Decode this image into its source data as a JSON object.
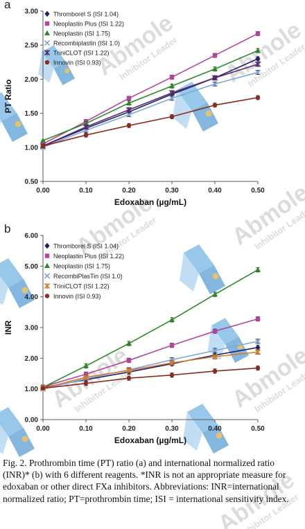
{
  "figure": {
    "caption": "Fig. 2. Prothrombin time (PT) ratio (a) and international normalized ratio (INR)* (b) with 6 different reagents. *INR is not an appropriate measure for edoxaban or other direct FXa inhibitors. Abbreviations: INR=international normalized ratio; PT=prothrombin time; ISI = international sensitivity index.",
    "watermark": {
      "brand": "Abmole",
      "tagline": "Inhibitor Leader"
    }
  },
  "chart_data": [
    {
      "type": "line",
      "panel_label": "a",
      "xlabel": "Edoxaban (µg/mL)",
      "ylabel": "PT Ratio",
      "xlim": [
        0,
        0.5
      ],
      "ylim": [
        0.5,
        3.0
      ],
      "x_ticks": [
        "0.00",
        "0.10",
        "0.20",
        "0.30",
        "0.40",
        "0.50"
      ],
      "y_ticks": [
        "0.50",
        "1.00",
        "1.50",
        "2.00",
        "2.50",
        "3.00"
      ],
      "x": [
        0,
        0.1,
        0.2,
        0.3,
        0.4,
        0.5
      ],
      "legend_position": "top-left",
      "series": [
        {
          "name": "Thromborel S (ISI 1.04)",
          "color": "#1f1f6e",
          "marker": "diamond",
          "values": [
            1.02,
            1.28,
            1.52,
            1.78,
            2.02,
            2.3
          ]
        },
        {
          "name": "Neoplastin Plus (ISI 1.22)",
          "color": "#b3469a",
          "marker": "square",
          "values": [
            1.05,
            1.38,
            1.72,
            2.03,
            2.35,
            2.67
          ]
        },
        {
          "name": "Neoplastin (ISI 1.75)",
          "color": "#2a8a2a",
          "marker": "triangle",
          "values": [
            1.1,
            1.35,
            1.65,
            1.9,
            2.15,
            2.42
          ]
        },
        {
          "name": "Recombiplastin (ISI 1.0)",
          "color": "#7fa7d8",
          "marker": "x",
          "values": [
            1.0,
            1.25,
            1.48,
            1.72,
            1.93,
            2.1
          ]
        },
        {
          "name": "TriniCLOT (ISI 1.22)",
          "color": "#5b2a6e",
          "marker": "star",
          "values": [
            1.02,
            1.3,
            1.55,
            1.8,
            2.02,
            2.22
          ]
        },
        {
          "name": "Innovin (ISI 0.93)",
          "color": "#8b2a1e",
          "marker": "circle",
          "values": [
            1.02,
            1.18,
            1.32,
            1.45,
            1.62,
            1.73
          ]
        }
      ]
    },
    {
      "type": "line",
      "panel_label": "b",
      "xlabel": "Edoxaban (µg/mL)",
      "ylabel": "INR",
      "xlim": [
        0,
        0.5
      ],
      "ylim": [
        0,
        6.0
      ],
      "x_ticks": [
        "0.00",
        "0.10",
        "0.20",
        "0.30",
        "0.40",
        "0.50"
      ],
      "y_ticks": [
        "0.00",
        "1.00",
        "2.00",
        "3.00",
        "4.00",
        "5.00",
        "6.00"
      ],
      "x": [
        0,
        0.1,
        0.2,
        0.3,
        0.4,
        0.5
      ],
      "legend_position": "top-left",
      "series": [
        {
          "name": "Thromborel S (ISI 1.04)",
          "color": "#1f1f6e",
          "marker": "diamond",
          "values": [
            1.05,
            1.3,
            1.55,
            1.82,
            2.1,
            2.35
          ]
        },
        {
          "name": "Neoplastin Plus (ISI 1.22)",
          "color": "#b3469a",
          "marker": "square",
          "values": [
            1.07,
            1.48,
            1.93,
            2.42,
            2.88,
            3.28
          ]
        },
        {
          "name": "Neoplastin (ISI 1.75)",
          "color": "#2a8a2a",
          "marker": "triangle",
          "values": [
            1.05,
            1.75,
            2.48,
            3.25,
            4.08,
            4.88
          ]
        },
        {
          "name": "RecombiPlasTin (ISI 1.0)",
          "color": "#7fa7d8",
          "marker": "x",
          "values": [
            1.0,
            1.33,
            1.62,
            1.95,
            2.25,
            2.55
          ]
        },
        {
          "name": "TriniCLOT (ISI 1.22)",
          "color": "#d77a2a",
          "marker": "star",
          "values": [
            1.02,
            1.38,
            1.6,
            1.85,
            2.05,
            2.2
          ]
        },
        {
          "name": "Innovin (ISI 0.93)",
          "color": "#8b2a1e",
          "marker": "circle",
          "values": [
            1.02,
            1.18,
            1.35,
            1.45,
            1.58,
            1.68
          ]
        }
      ]
    }
  ]
}
